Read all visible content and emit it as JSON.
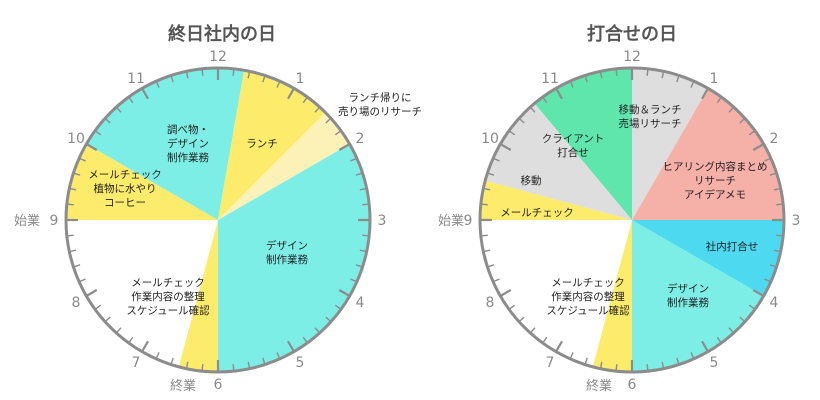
{
  "clocks": [
    {
      "title": "終日社内の日",
      "numerals": [
        "12",
        "1",
        "2",
        "3",
        "4",
        "5",
        "6",
        "7",
        "8",
        "9",
        "10",
        "11"
      ],
      "start_label": "始業",
      "end_label": "終業",
      "segments": [
        {
          "id": "research",
          "from": 10,
          "to": 12.33,
          "color": "#7ceee6",
          "lines": [
            "調べ物・",
            "デザイン",
            "制作業務"
          ]
        },
        {
          "id": "lunch",
          "from": 12.33,
          "to": 1.5,
          "color": "#fdeb6c",
          "lines": [
            "ランチ"
          ]
        },
        {
          "id": "lunch-return",
          "from": 1.5,
          "to": 2,
          "color": "#fcf1b6",
          "lines": [
            "ランチ帰りに",
            "売り場のリサーチ"
          ]
        },
        {
          "id": "design",
          "from": 2,
          "to": 6,
          "color": "#7ceee6",
          "lines": [
            "デザイン",
            "制作業務"
          ]
        },
        {
          "id": "wrapup",
          "from": 6,
          "to": 6.5,
          "color": "#fdeb6c",
          "lines": []
        },
        {
          "id": "free",
          "from": 6.5,
          "to": 9,
          "color": "#ffffff",
          "lines": [
            "メールチェック",
            "作業内容の整理",
            "スケジュール確認"
          ]
        },
        {
          "id": "morning",
          "from": 9,
          "to": 10,
          "color": "#fdeb6c",
          "lines": [
            "メールチェック",
            "植物に水やり",
            "コーヒー"
          ]
        }
      ]
    },
    {
      "title": "打合せの日",
      "numerals": [
        "12",
        "1",
        "2",
        "3",
        "4",
        "5",
        "6",
        "7",
        "8",
        "9",
        "10",
        "11"
      ],
      "start_label": "始業",
      "end_label": "終業",
      "segments": [
        {
          "id": "client",
          "from": 10.67,
          "to": 12,
          "color": "#5ee6ad",
          "lines": [
            "クライアント",
            "打合せ"
          ]
        },
        {
          "id": "move-lunch",
          "from": 12,
          "to": 1,
          "color": "#dedede",
          "lines": [
            "移動＆ランチ",
            "売場リサーチ"
          ]
        },
        {
          "id": "hearing",
          "from": 1,
          "to": 3,
          "color": "#f5b0a8",
          "lines": [
            "ヒアリング内容まとめ",
            "リサーチ",
            "アイデアメモ"
          ]
        },
        {
          "id": "internal-meeting",
          "from": 3,
          "to": 4,
          "color": "#4dd9ef",
          "lines": [
            "社内打合せ"
          ]
        },
        {
          "id": "design",
          "from": 4,
          "to": 6,
          "color": "#7ceee6",
          "lines": [
            "デザイン",
            "制作業務"
          ]
        },
        {
          "id": "wrapup",
          "from": 6,
          "to": 6.5,
          "color": "#fdeb6c",
          "lines": []
        },
        {
          "id": "free",
          "from": 6.5,
          "to": 9,
          "color": "#ffffff",
          "lines": [
            "メールチェック",
            "作業内容の整理",
            "スケジュール確認"
          ]
        },
        {
          "id": "mail",
          "from": 9,
          "to": 9.5,
          "color": "#fdeb6c",
          "lines": [
            "メールチェック"
          ]
        },
        {
          "id": "move",
          "from": 9.5,
          "to": 10.67,
          "color": "#dedede",
          "lines": [
            "移動"
          ]
        }
      ]
    }
  ]
}
